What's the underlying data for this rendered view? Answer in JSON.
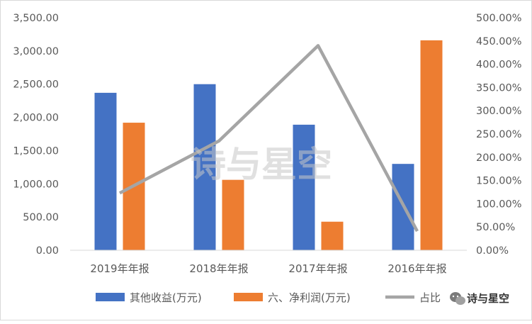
{
  "chart_data": {
    "type": "bar+line",
    "categories": [
      "2019年年报",
      "2018年年报",
      "2017年年报",
      "2016年年报"
    ],
    "series": [
      {
        "name": "其他收益(万元)",
        "type": "bar",
        "axis": "left",
        "color": "#4472C4",
        "values": [
          2370,
          2500,
          1890,
          1300
        ]
      },
      {
        "name": "六、净利润(万元)",
        "type": "bar",
        "axis": "left",
        "color": "#ED7D31",
        "values": [
          1920,
          1060,
          430,
          3160
        ]
      },
      {
        "name": "占比",
        "type": "line",
        "axis": "right",
        "color": "#A5A5A5",
        "values": [
          1.23,
          2.35,
          4.4,
          0.41
        ]
      }
    ],
    "ylim_left": [
      0,
      3500
    ],
    "ylim_right": [
      0,
      5
    ],
    "yticks_left": [
      "0.00",
      "500.00",
      "1,000.00",
      "1,500.00",
      "2,000.00",
      "2,500.00",
      "3,000.00",
      "3,500.00"
    ],
    "yticks_right": [
      "0.00%",
      "50.00%",
      "100.00%",
      "150.00%",
      "200.00%",
      "250.00%",
      "300.00%",
      "350.00%",
      "400.00%",
      "450.00%",
      "500.00%"
    ],
    "legend_position": "bottom",
    "grid": false
  },
  "watermark_text": "诗与星空",
  "brand_text": "诗与星空",
  "icon": "wechat-icon"
}
